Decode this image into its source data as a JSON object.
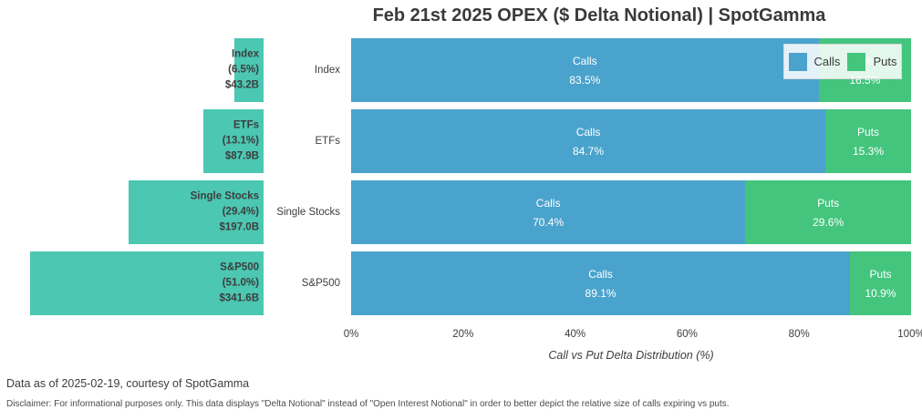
{
  "title": "Feb 21st 2025 OPEX ($ Delta Notional) | SpotGamma",
  "chart_data": [
    {
      "type": "bar",
      "name": "delta-notional-by-asset-class",
      "orientation": "horizontal-right-anchored",
      "categories": [
        "Index",
        "ETFs",
        "Single Stocks",
        "S&P500"
      ],
      "values_billions_usd": [
        43.2,
        87.9,
        197.0,
        341.6
      ],
      "percent_of_total": [
        6.5,
        13.1,
        29.4,
        51.0
      ],
      "value_label_format": "Category / (pct%) / $valueB",
      "bar_color": "#4bc7b2",
      "label_color": "#3d3d3d",
      "grid": false
    },
    {
      "type": "bar",
      "name": "call-vs-put-delta-distribution",
      "stacked": true,
      "orientation": "horizontal",
      "categories": [
        "Index",
        "ETFs",
        "Single Stocks",
        "S&P500"
      ],
      "series": [
        {
          "name": "Calls",
          "color": "#4aa3cc",
          "values": [
            83.5,
            84.7,
            70.4,
            89.1
          ]
        },
        {
          "name": "Puts",
          "color": "#44c57e",
          "values": [
            16.5,
            15.3,
            29.6,
            10.9
          ]
        }
      ],
      "xlabel": "Call vs Put Delta Distribution (%)",
      "xlim": [
        0,
        100
      ],
      "x_tick_labels": [
        "0%",
        "20%",
        "40%",
        "60%",
        "80%",
        "100%"
      ],
      "grid": false,
      "legend": {
        "position": "top-right",
        "entries": [
          "Calls",
          "Puts"
        ]
      }
    }
  ],
  "footer": {
    "note": "Data as of 2025-02-19, courtesy of SpotGamma",
    "disclaimer": "Disclaimer: For informational purposes only. This data displays \"Delta Notional\" instead of \"Open Interest Notional\" in order to better depict the relative size of calls expiring vs puts."
  }
}
